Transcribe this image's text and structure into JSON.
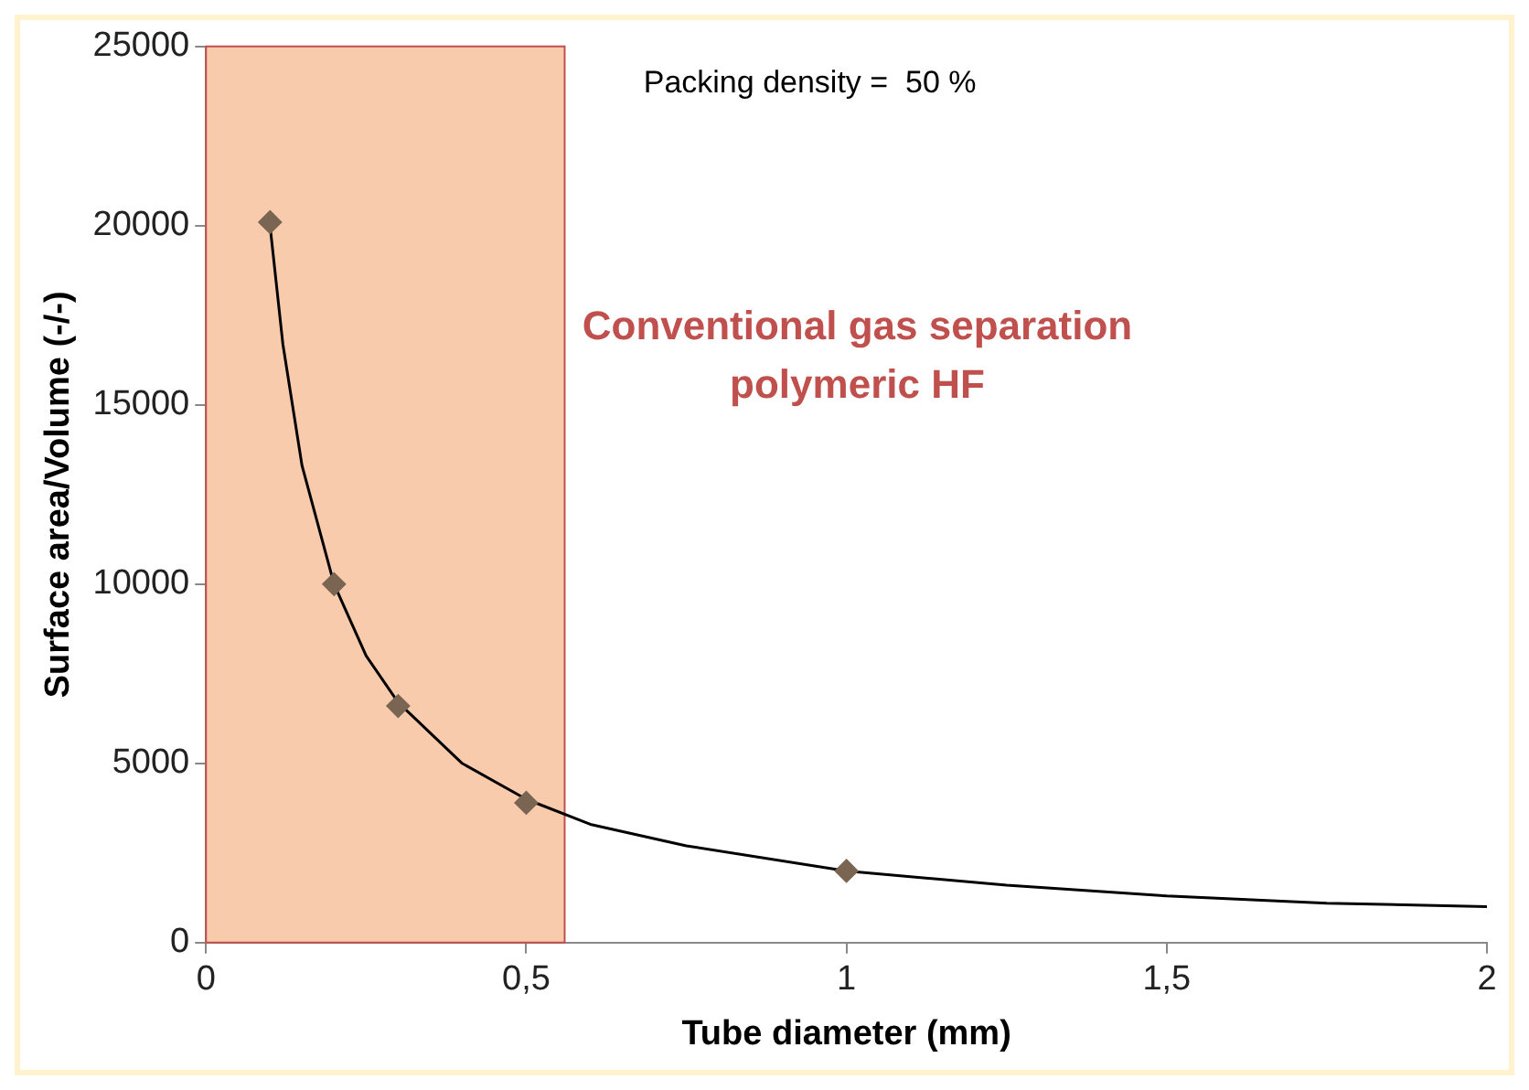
{
  "chart_data": {
    "type": "scatter",
    "xlabel": "Tube diameter (mm)",
    "ylabel": "Surface area/Volume (-/-)",
    "annotations": [
      "Packing density =  50 %"
    ],
    "series": [
      {
        "color": "#7a6552",
        "marker": "diamond",
        "x": [
          0.1,
          0.2,
          0.3,
          0.5,
          1
        ],
        "values": [
          20100,
          10000,
          6600,
          3900,
          2000
        ]
      },
      {
        "type": "line",
        "color": "#000000",
        "marker": "none",
        "x": [
          0.1,
          0.12,
          0.15,
          0.2,
          0.25,
          0.3,
          0.4,
          0.5,
          0.6,
          0.75,
          1,
          1.25,
          1.5,
          1.75,
          2
        ],
        "values": [
          20000,
          16700,
          13300,
          10000,
          8000,
          6700,
          5000,
          4000,
          3300,
          2700,
          2000,
          1600,
          1300,
          1100,
          1000
        ]
      }
    ],
    "bands": [
      {
        "axis": "x",
        "from": 0,
        "to": 0.56,
        "label": "Conventional gas separation polymeric HF",
        "color": "#f8cbad"
      }
    ],
    "xlim": [
      0,
      2
    ],
    "xticks": [
      0,
      {
        "value": 0.5,
        "label": "0,5"
      },
      1,
      {
        "value": 1.5,
        "label": "1,5"
      },
      2
    ],
    "ylim": [
      0,
      25000
    ],
    "yticks": [
      0,
      5000,
      10000,
      15000,
      20000,
      25000
    ],
    "grid": false,
    "legend": false
  }
}
